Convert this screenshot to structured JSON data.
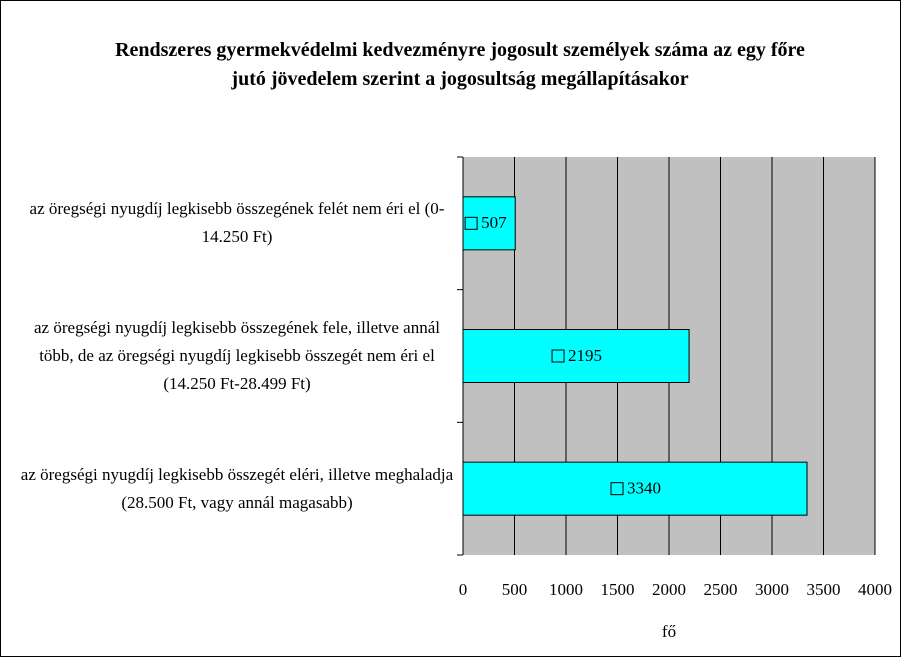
{
  "chart_data": {
    "type": "barh",
    "title": "Rendszeres gyermekvédelmi kedvezményre jogosult személyek száma az egy főre jutó jövedelem szerint a jogosultság megállapításakor",
    "categories": [
      "az öregségi nyugdíj legkisebb összegének felét nem éri el (0-14.250 Ft)",
      "az öregségi nyugdíj legkisebb összegének fele, illetve annál több, de az öregségi nyugdíj legkisebb összegét nem éri el (14.250 Ft-28.499 Ft)",
      "az öregségi nyugdíj legkisebb összegét eléri, illetve meghaladja (28.500 Ft, vagy annál magasabb)"
    ],
    "values": [
      507,
      2195,
      3340
    ],
    "color": "#00ffff",
    "xlabel": "fő",
    "xlim": [
      0,
      4000
    ],
    "xticks": [
      0,
      500,
      1000,
      1500,
      2000,
      2500,
      3000,
      3500,
      4000
    ],
    "grid": true
  }
}
